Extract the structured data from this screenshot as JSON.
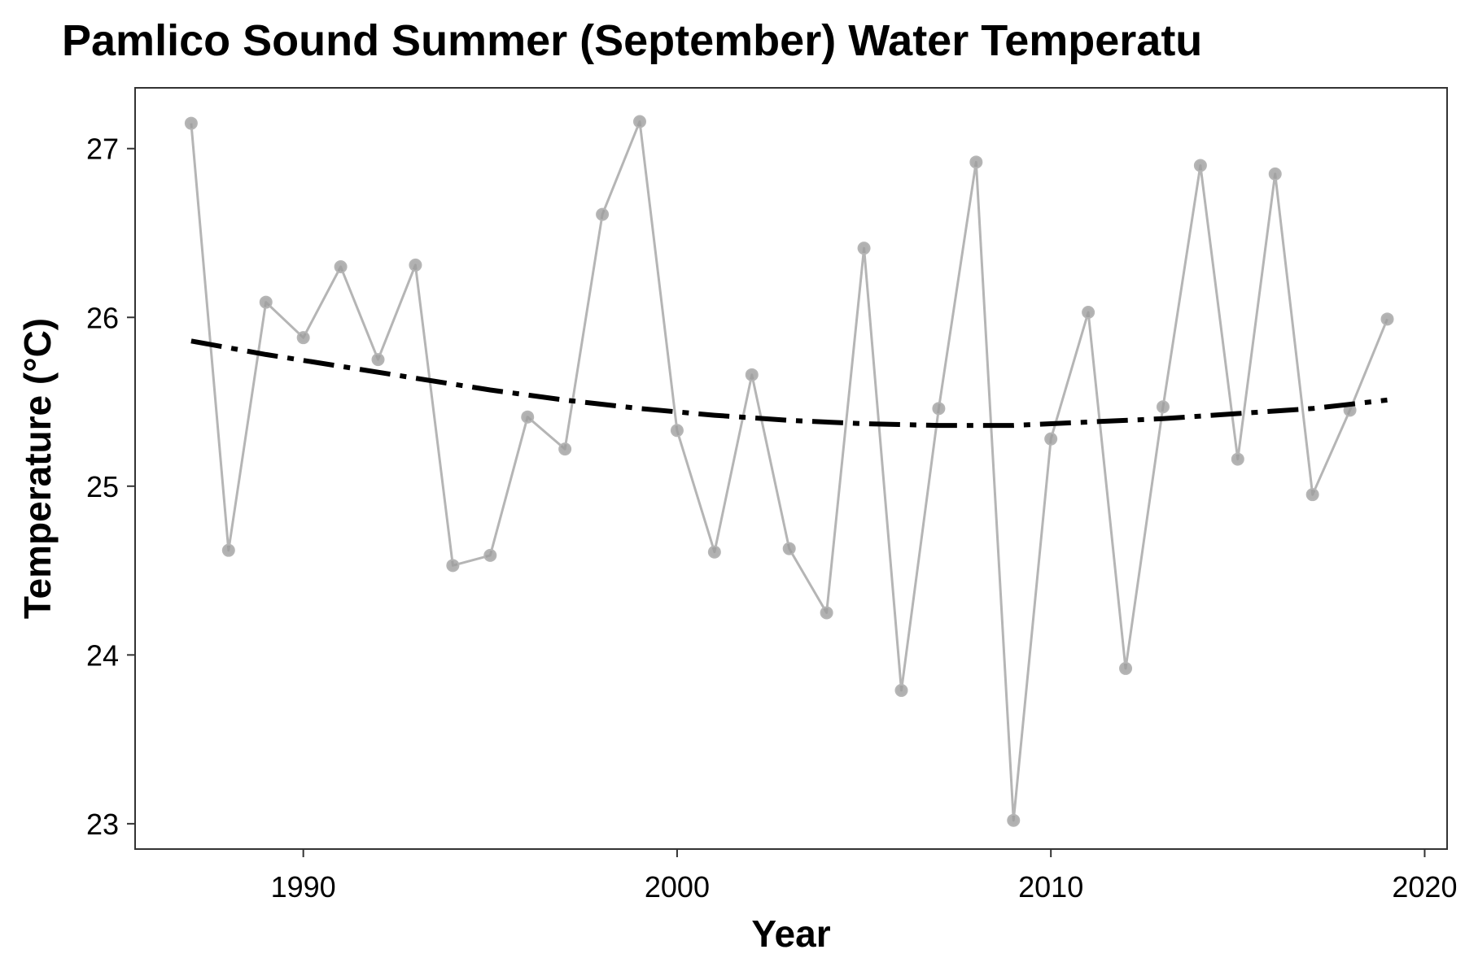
{
  "chart_data": {
    "type": "line",
    "title": "Pamlico Sound Summer (September) Water Temperatu",
    "xlabel": "Year",
    "ylabel": "Temperature (°C)",
    "xlim": [
      1985.5,
      2020.6
    ],
    "ylim": [
      22.85,
      27.36
    ],
    "x_ticks": [
      1990,
      2000,
      2010,
      2020
    ],
    "x_tick_labels": [
      "1990",
      "2000",
      "2010",
      "2020"
    ],
    "y_ticks": [
      23,
      24,
      25,
      26,
      27
    ],
    "y_tick_labels": [
      "23",
      "24",
      "25",
      "26",
      "27"
    ],
    "grid": false,
    "series": [
      {
        "style": "line-with-points",
        "color": "#b5b5b5",
        "point_color": "#9e9e9e",
        "x": [
          1987,
          1988,
          1989,
          1990,
          1991,
          1992,
          1993,
          1994,
          1995,
          1996,
          1997,
          1998,
          1999,
          2000,
          2001,
          2002,
          2003,
          2004,
          2005,
          2006,
          2007,
          2008,
          2009,
          2010,
          2011,
          2012,
          2013,
          2014,
          2015,
          2016,
          2017,
          2018,
          2019
        ],
        "values": [
          27.15,
          24.62,
          26.09,
          25.88,
          26.3,
          25.75,
          26.31,
          24.53,
          24.59,
          25.41,
          25.22,
          26.61,
          27.16,
          25.33,
          24.61,
          25.66,
          24.63,
          24.25,
          26.41,
          23.79,
          25.46,
          26.92,
          23.02,
          25.28,
          26.03,
          23.92,
          25.47,
          26.9,
          25.16,
          26.85,
          24.95,
          25.45,
          25.99
        ]
      },
      {
        "style": "dash-dot trend",
        "color": "#000000",
        "x": [
          1987,
          1989,
          1991,
          1993,
          1995,
          1997,
          1999,
          2001,
          2003,
          2005,
          2007,
          2009,
          2011,
          2013,
          2015,
          2017,
          2019
        ],
        "values": [
          25.86,
          25.78,
          25.71,
          25.64,
          25.57,
          25.51,
          25.46,
          25.42,
          25.39,
          25.37,
          25.36,
          25.36,
          25.38,
          25.4,
          25.43,
          25.46,
          25.51
        ]
      }
    ]
  }
}
